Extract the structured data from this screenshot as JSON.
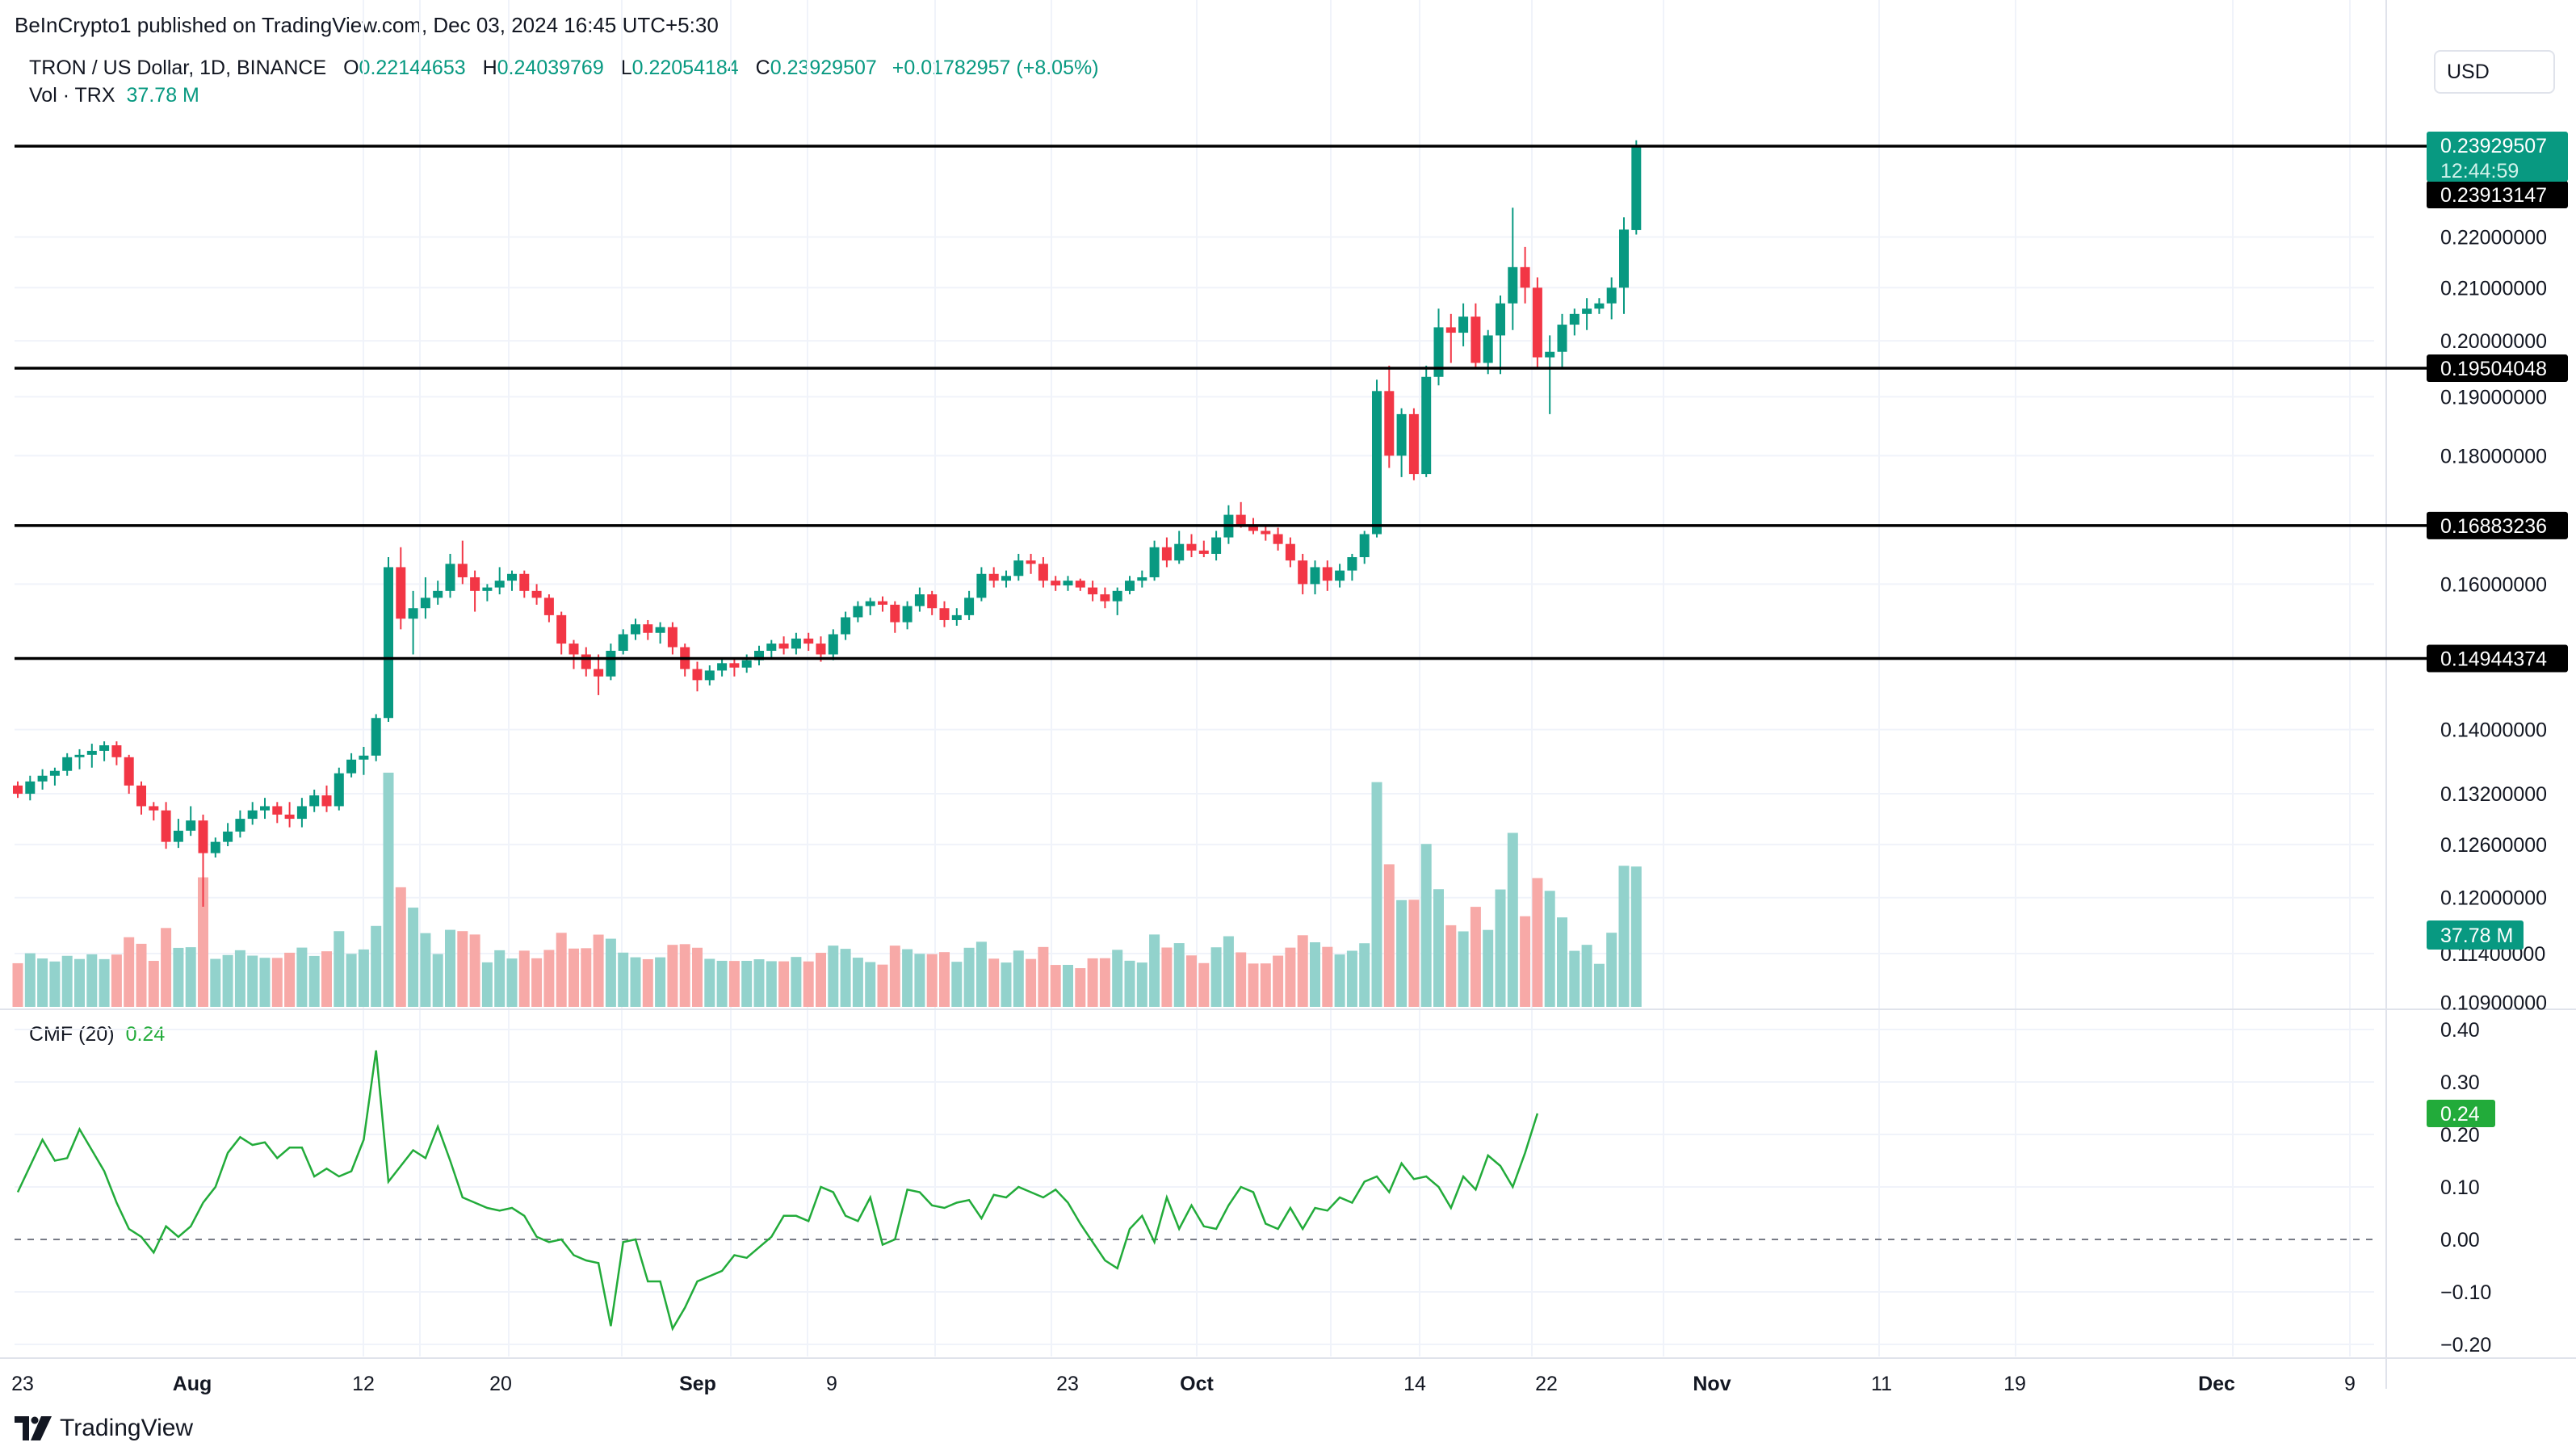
{
  "header": {
    "publisher": "BeInCrypto1 published on TradingView.com, Dec 03, 2024 16:45 UTC+5:30",
    "symbol": "TRON / US Dollar, 1D, BINANCE",
    "open_label": "O",
    "open": "0.22144653",
    "high_label": "H",
    "high": "0.24039769",
    "low_label": "L",
    "low": "0.22054184",
    "close_label": "C",
    "close": "0.23929507",
    "change": "+0.01782957 (+8.05%)",
    "vol_label": "Vol · TRX",
    "vol_value": "37.78 M",
    "currency": "USD"
  },
  "footer": {
    "brand": "TradingView"
  },
  "colors": {
    "up": "#089981",
    "down": "#f23645",
    "vol_up": "#92d2cc",
    "vol_down": "#f7a9a7",
    "cmf": "#22ab3a",
    "grid": "#f0f3fa",
    "level": "#000000"
  },
  "chart_data": [
    {
      "type": "candlestick",
      "title": "TRON / US Dollar, 1D, BINANCE",
      "y_scale": "log",
      "price_ticks": [
        "0.22000000",
        "0.21000000",
        "0.20000000",
        "0.19000000",
        "0.18000000",
        "0.16000000",
        "0.14000000",
        "0.13200000",
        "0.12600000",
        "0.12000000",
        "0.11400000",
        "0.10900000"
      ],
      "x_ticks": [
        "23",
        "Aug",
        "12",
        "20",
        "Sep",
        "9",
        "23",
        "Oct",
        "14",
        "22",
        "Nov",
        "11",
        "19",
        "Dec",
        "9"
      ],
      "horizontal_levels": [
        0.23913147,
        0.19504048,
        0.16883236,
        0.14944374
      ],
      "level_labels": [
        "0.23913147",
        "0.19504048",
        "0.16883236",
        "0.14944374"
      ],
      "last_price_label": "0.23929507",
      "countdown_label": "12:44:59",
      "first_date": "2024-07-22",
      "candles": [
        [
          0.133,
          0.1335,
          0.1315,
          0.132
        ],
        [
          0.132,
          0.1342,
          0.1312,
          0.1335
        ],
        [
          0.1335,
          0.135,
          0.1325,
          0.1342
        ],
        [
          0.1342,
          0.1352,
          0.133,
          0.1348
        ],
        [
          0.1348,
          0.137,
          0.1342,
          0.1365
        ],
        [
          0.1365,
          0.1375,
          0.135,
          0.1368
        ],
        [
          0.1368,
          0.1382,
          0.1352,
          0.1373
        ],
        [
          0.1373,
          0.1385,
          0.136,
          0.138
        ],
        [
          0.138,
          0.1385,
          0.1355,
          0.1365
        ],
        [
          0.1365,
          0.1368,
          0.132,
          0.133
        ],
        [
          0.133,
          0.1335,
          0.1295,
          0.1305
        ],
        [
          0.1305,
          0.131,
          0.1288,
          0.13
        ],
        [
          0.13,
          0.131,
          0.1255,
          0.1263
        ],
        [
          0.1263,
          0.129,
          0.1256,
          0.1276
        ],
        [
          0.1276,
          0.1305,
          0.127,
          0.1288
        ],
        [
          0.1288,
          0.1295,
          0.119,
          0.125
        ],
        [
          0.125,
          0.1268,
          0.1245,
          0.1263
        ],
        [
          0.1263,
          0.1285,
          0.1258,
          0.1275
        ],
        [
          0.1275,
          0.13,
          0.1268,
          0.129
        ],
        [
          0.129,
          0.131,
          0.1283,
          0.13
        ],
        [
          0.13,
          0.1315,
          0.129,
          0.1305
        ],
        [
          0.1305,
          0.131,
          0.1285,
          0.1295
        ],
        [
          0.1295,
          0.131,
          0.128,
          0.129
        ],
        [
          0.129,
          0.1315,
          0.128,
          0.1305
        ],
        [
          0.1305,
          0.1325,
          0.1298,
          0.1318
        ],
        [
          0.1318,
          0.133,
          0.1298,
          0.1305
        ],
        [
          0.1305,
          0.1352,
          0.13,
          0.1345
        ],
        [
          0.1345,
          0.137,
          0.134,
          0.1362
        ],
        [
          0.1362,
          0.1378,
          0.1343,
          0.1367
        ],
        [
          0.1367,
          0.142,
          0.136,
          0.1415
        ],
        [
          0.1415,
          0.164,
          0.141,
          0.1625
        ],
        [
          0.1625,
          0.1655,
          0.1535,
          0.155
        ],
        [
          0.155,
          0.159,
          0.15,
          0.1565
        ],
        [
          0.1565,
          0.161,
          0.155,
          0.158
        ],
        [
          0.158,
          0.1605,
          0.157,
          0.159
        ],
        [
          0.159,
          0.1645,
          0.158,
          0.163
        ],
        [
          0.163,
          0.1665,
          0.16,
          0.161
        ],
        [
          0.161,
          0.162,
          0.156,
          0.159
        ],
        [
          0.159,
          0.16,
          0.1575,
          0.1595
        ],
        [
          0.1595,
          0.1625,
          0.1585,
          0.1605
        ],
        [
          0.1605,
          0.162,
          0.159,
          0.1615
        ],
        [
          0.1615,
          0.162,
          0.158,
          0.159
        ],
        [
          0.159,
          0.16,
          0.157,
          0.158
        ],
        [
          0.158,
          0.1585,
          0.1545,
          0.1555
        ],
        [
          0.1555,
          0.156,
          0.15,
          0.1515
        ],
        [
          0.1515,
          0.152,
          0.148,
          0.15
        ],
        [
          0.15,
          0.151,
          0.147,
          0.148
        ],
        [
          0.148,
          0.15,
          0.1445,
          0.147
        ],
        [
          0.147,
          0.1515,
          0.1465,
          0.1505
        ],
        [
          0.1505,
          0.1535,
          0.15,
          0.1528
        ],
        [
          0.1528,
          0.155,
          0.152,
          0.1542
        ],
        [
          0.1542,
          0.1548,
          0.152,
          0.153
        ],
        [
          0.153,
          0.1545,
          0.1515,
          0.1538
        ],
        [
          0.1538,
          0.1545,
          0.15,
          0.151
        ],
        [
          0.151,
          0.1515,
          0.147,
          0.148
        ],
        [
          0.148,
          0.149,
          0.145,
          0.1465
        ],
        [
          0.1465,
          0.1485,
          0.1458,
          0.1478
        ],
        [
          0.1478,
          0.1495,
          0.147,
          0.1488
        ],
        [
          0.1488,
          0.1495,
          0.147,
          0.1482
        ],
        [
          0.1482,
          0.15,
          0.1475,
          0.1492
        ],
        [
          0.1492,
          0.1512,
          0.1485,
          0.1505
        ],
        [
          0.1505,
          0.152,
          0.1495,
          0.1515
        ],
        [
          0.1515,
          0.1525,
          0.15,
          0.1508
        ],
        [
          0.1508,
          0.153,
          0.15,
          0.1522
        ],
        [
          0.1522,
          0.153,
          0.1505,
          0.1515
        ],
        [
          0.1515,
          0.1525,
          0.149,
          0.15
        ],
        [
          0.15,
          0.1535,
          0.1492,
          0.1528
        ],
        [
          0.1528,
          0.156,
          0.152,
          0.1552
        ],
        [
          0.1552,
          0.1575,
          0.1545,
          0.1568
        ],
        [
          0.1568,
          0.158,
          0.1555,
          0.1575
        ],
        [
          0.1575,
          0.1582,
          0.156,
          0.157
        ],
        [
          0.157,
          0.1575,
          0.153,
          0.1545
        ],
        [
          0.1545,
          0.1575,
          0.1535,
          0.1568
        ],
        [
          0.1568,
          0.1595,
          0.156,
          0.1585
        ],
        [
          0.1585,
          0.159,
          0.1555,
          0.1565
        ],
        [
          0.1565,
          0.1575,
          0.1538,
          0.1548
        ],
        [
          0.1548,
          0.1565,
          0.154,
          0.1555
        ],
        [
          0.1555,
          0.159,
          0.1548,
          0.158
        ],
        [
          0.158,
          0.1625,
          0.1575,
          0.1615
        ],
        [
          0.1615,
          0.1625,
          0.1595,
          0.1605
        ],
        [
          0.1605,
          0.162,
          0.1595,
          0.1612
        ],
        [
          0.1612,
          0.1645,
          0.1605,
          0.1635
        ],
        [
          0.1635,
          0.1645,
          0.1615,
          0.163
        ],
        [
          0.163,
          0.164,
          0.1595,
          0.1605
        ],
        [
          0.1605,
          0.1612,
          0.159,
          0.1598
        ],
        [
          0.1598,
          0.1612,
          0.159,
          0.1605
        ],
        [
          0.1605,
          0.1608,
          0.159,
          0.1595
        ],
        [
          0.1595,
          0.1605,
          0.1575,
          0.1585
        ],
        [
          0.1585,
          0.1595,
          0.1565,
          0.1575
        ],
        [
          0.1575,
          0.1595,
          0.1555,
          0.159
        ],
        [
          0.159,
          0.1612,
          0.1585,
          0.1605
        ],
        [
          0.1605,
          0.162,
          0.1595,
          0.161
        ],
        [
          0.161,
          0.1665,
          0.1605,
          0.1655
        ],
        [
          0.1655,
          0.167,
          0.1625,
          0.1635
        ],
        [
          0.1635,
          0.168,
          0.163,
          0.166
        ],
        [
          0.166,
          0.1675,
          0.164,
          0.165
        ],
        [
          0.165,
          0.1665,
          0.164,
          0.1645
        ],
        [
          0.1645,
          0.168,
          0.1635,
          0.167
        ],
        [
          0.167,
          0.172,
          0.166,
          0.1705
        ],
        [
          0.1705,
          0.1725,
          0.1685,
          0.169
        ],
        [
          0.169,
          0.17,
          0.1675,
          0.168
        ],
        [
          0.168,
          0.169,
          0.1665,
          0.1675
        ],
        [
          0.1675,
          0.1685,
          0.165,
          0.166
        ],
        [
          0.166,
          0.167,
          0.1625,
          0.1635
        ],
        [
          0.1635,
          0.1645,
          0.1585,
          0.16
        ],
        [
          0.16,
          0.1635,
          0.1585,
          0.1625
        ],
        [
          0.1625,
          0.1635,
          0.159,
          0.1605
        ],
        [
          0.1605,
          0.163,
          0.1595,
          0.162
        ],
        [
          0.162,
          0.1645,
          0.1605,
          0.164
        ],
        [
          0.164,
          0.168,
          0.163,
          0.1675
        ],
        [
          0.1675,
          0.193,
          0.167,
          0.191
        ],
        [
          0.191,
          0.1955,
          0.178,
          0.18
        ],
        [
          0.18,
          0.188,
          0.1765,
          0.187
        ],
        [
          0.187,
          0.188,
          0.176,
          0.177
        ],
        [
          0.177,
          0.1955,
          0.1765,
          0.1935
        ],
        [
          0.1935,
          0.206,
          0.192,
          0.2025
        ],
        [
          0.2025,
          0.205,
          0.196,
          0.2015
        ],
        [
          0.2015,
          0.207,
          0.199,
          0.2045
        ],
        [
          0.2045,
          0.207,
          0.195,
          0.196
        ],
        [
          0.196,
          0.202,
          0.194,
          0.201
        ],
        [
          0.201,
          0.2085,
          0.194,
          0.207
        ],
        [
          0.207,
          0.226,
          0.202,
          0.214
        ],
        [
          0.214,
          0.218,
          0.207,
          0.21
        ],
        [
          0.21,
          0.212,
          0.195,
          0.197
        ],
        [
          0.197,
          0.201,
          0.187,
          0.198
        ],
        [
          0.198,
          0.205,
          0.195,
          0.203
        ],
        [
          0.203,
          0.206,
          0.201,
          0.205
        ],
        [
          0.205,
          0.208,
          0.202,
          0.206
        ],
        [
          0.206,
          0.208,
          0.205,
          0.207
        ],
        [
          0.207,
          0.212,
          0.204,
          0.21
        ],
        [
          0.21,
          0.224,
          0.205,
          0.2215
        ],
        [
          0.2214,
          0.2404,
          0.2205,
          0.2393
        ]
      ],
      "volume_label": "37.78 M"
    },
    {
      "type": "line",
      "title": "CMF (20)",
      "series": [
        {
          "name": "CMF (20)",
          "last_value": "0.24",
          "values": [
            0.09,
            0.14,
            0.19,
            0.15,
            0.155,
            0.21,
            0.17,
            0.13,
            0.07,
            0.02,
            0.005,
            -0.025,
            0.025,
            0.005,
            0.025,
            0.07,
            0.1,
            0.165,
            0.195,
            0.18,
            0.185,
            0.155,
            0.175,
            0.175,
            0.12,
            0.135,
            0.12,
            0.13,
            0.19,
            0.36,
            0.11,
            0.14,
            0.17,
            0.155,
            0.215,
            0.15,
            0.08,
            0.07,
            0.06,
            0.055,
            0.06,
            0.045,
            0.005,
            -0.005,
            0.0,
            -0.03,
            -0.04,
            -0.045,
            -0.165,
            -0.005,
            0.0,
            -0.08,
            -0.08,
            -0.17,
            -0.13,
            -0.08,
            -0.07,
            -0.06,
            -0.03,
            -0.035,
            -0.015,
            0.005,
            0.045,
            0.045,
            0.035,
            0.1,
            0.09,
            0.045,
            0.035,
            0.08,
            -0.01,
            0.0,
            0.095,
            0.09,
            0.065,
            0.06,
            0.07,
            0.075,
            0.04,
            0.085,
            0.08,
            0.1,
            0.09,
            0.08,
            0.095,
            0.07,
            0.03,
            -0.005,
            -0.04,
            -0.055,
            0.02,
            0.045,
            -0.005,
            0.08,
            0.02,
            0.065,
            0.025,
            0.02,
            0.065,
            0.1,
            0.09,
            0.03,
            0.02,
            0.06,
            0.02,
            0.06,
            0.055,
            0.08,
            0.07,
            0.11,
            0.12,
            0.09,
            0.145,
            0.115,
            0.12,
            0.1,
            0.06,
            0.12,
            0.095,
            0.16,
            0.14,
            0.1,
            0.165,
            0.24
          ]
        }
      ],
      "ylim": [
        -0.2,
        0.4
      ],
      "y_ticks": [
        "0.40",
        "0.30",
        "0.20",
        "0.10",
        "0.00",
        "−0.10",
        "−0.20"
      ]
    }
  ]
}
